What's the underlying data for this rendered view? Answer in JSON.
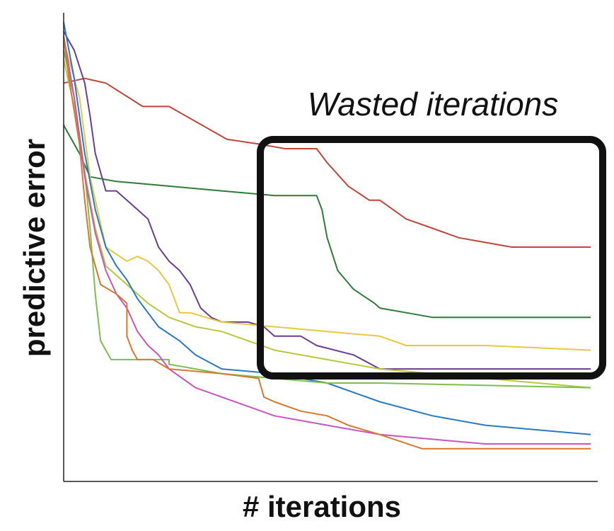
{
  "chart_data": {
    "type": "line",
    "xlabel": "# iterations",
    "ylabel": "predictive error",
    "xlim": [
      0,
      100
    ],
    "ylim": [
      0,
      100
    ],
    "grid": false,
    "annotation": {
      "text": "Wasted iterations"
    },
    "series": [
      {
        "color": "#c0463a",
        "points": [
          [
            0,
            85
          ],
          [
            4,
            86
          ],
          [
            8,
            85
          ],
          [
            15,
            80
          ],
          [
            20,
            80
          ],
          [
            31,
            73
          ],
          [
            37,
            72
          ],
          [
            42,
            71
          ],
          [
            48,
            71
          ],
          [
            50,
            68
          ],
          [
            54,
            63
          ],
          [
            58,
            60
          ],
          [
            60,
            60
          ],
          [
            65,
            56
          ],
          [
            70,
            54
          ],
          [
            75,
            52
          ],
          [
            80,
            51
          ],
          [
            85,
            50
          ],
          [
            90,
            50
          ],
          [
            100,
            50
          ]
        ]
      },
      {
        "color": "#2e7b38",
        "points": [
          [
            0,
            76
          ],
          [
            3,
            70
          ],
          [
            5,
            65
          ],
          [
            10,
            64
          ],
          [
            20,
            63
          ],
          [
            30,
            62
          ],
          [
            40,
            61
          ],
          [
            48,
            61
          ],
          [
            49,
            58
          ],
          [
            50,
            52
          ],
          [
            52,
            45
          ],
          [
            55,
            41
          ],
          [
            59,
            38
          ],
          [
            60,
            37
          ],
          [
            65,
            36
          ],
          [
            70,
            35
          ],
          [
            80,
            35
          ],
          [
            100,
            35
          ]
        ]
      },
      {
        "color": "#6a3d8f",
        "points": [
          [
            0,
            96
          ],
          [
            2,
            92
          ],
          [
            4,
            85
          ],
          [
            5,
            78
          ],
          [
            6,
            70
          ],
          [
            8,
            62
          ],
          [
            10,
            62
          ],
          [
            12,
            60
          ],
          [
            14,
            58
          ],
          [
            16,
            56
          ],
          [
            18,
            50
          ],
          [
            20,
            47
          ],
          [
            22,
            45
          ],
          [
            24,
            42
          ],
          [
            26,
            37
          ],
          [
            28,
            35
          ],
          [
            30,
            34
          ],
          [
            35,
            34
          ],
          [
            38,
            33
          ],
          [
            40,
            31
          ],
          [
            45,
            31
          ],
          [
            48,
            29
          ],
          [
            55,
            27
          ],
          [
            60,
            24
          ],
          [
            65,
            24
          ],
          [
            70,
            24
          ],
          [
            80,
            24
          ],
          [
            100,
            24
          ]
        ]
      },
      {
        "color": "#e8c840",
        "points": [
          [
            0,
            94
          ],
          [
            3,
            82
          ],
          [
            5,
            65
          ],
          [
            8,
            50
          ],
          [
            12,
            47
          ],
          [
            14,
            48
          ],
          [
            16,
            47
          ],
          [
            18,
            45
          ],
          [
            20,
            42
          ],
          [
            22,
            36
          ],
          [
            24,
            36
          ],
          [
            30,
            34
          ],
          [
            40,
            33
          ],
          [
            50,
            32
          ],
          [
            60,
            31
          ],
          [
            65,
            29
          ],
          [
            70,
            29
          ],
          [
            80,
            29
          ],
          [
            100,
            28
          ]
        ]
      },
      {
        "color": "#b7c83a",
        "points": [
          [
            0,
            90
          ],
          [
            2,
            80
          ],
          [
            4,
            66
          ],
          [
            6,
            54
          ],
          [
            8,
            46
          ],
          [
            12,
            42
          ],
          [
            16,
            38
          ],
          [
            20,
            35
          ],
          [
            25,
            33
          ],
          [
            30,
            32
          ],
          [
            40,
            28
          ],
          [
            50,
            26
          ],
          [
            60,
            24
          ],
          [
            70,
            23
          ],
          [
            80,
            22
          ],
          [
            100,
            20
          ]
        ]
      },
      {
        "color": "#2a78c4",
        "points": [
          [
            0,
            98
          ],
          [
            2,
            86
          ],
          [
            4,
            70
          ],
          [
            6,
            58
          ],
          [
            8,
            50
          ],
          [
            10,
            46
          ],
          [
            12,
            43
          ],
          [
            14,
            39
          ],
          [
            16,
            36
          ],
          [
            18,
            33
          ],
          [
            22,
            30
          ],
          [
            25,
            27
          ],
          [
            30,
            24
          ],
          [
            40,
            23
          ],
          [
            50,
            21
          ],
          [
            60,
            17
          ],
          [
            70,
            14
          ],
          [
            80,
            12
          ],
          [
            90,
            11
          ],
          [
            100,
            10
          ]
        ]
      },
      {
        "color": "#7cbf4e",
        "points": [
          [
            0,
            92
          ],
          [
            2,
            82
          ],
          [
            4,
            66
          ],
          [
            5,
            54
          ],
          [
            6,
            40
          ],
          [
            7,
            30
          ],
          [
            8,
            28
          ],
          [
            9,
            26
          ],
          [
            12,
            26
          ],
          [
            15,
            26
          ],
          [
            20,
            26
          ],
          [
            20,
            25
          ],
          [
            25,
            24
          ],
          [
            30,
            23
          ],
          [
            40,
            22
          ],
          [
            50,
            21
          ],
          [
            60,
            21
          ],
          [
            100,
            20
          ]
        ]
      },
      {
        "color": "#c655c0",
        "points": [
          [
            0,
            95
          ],
          [
            2,
            82
          ],
          [
            4,
            65
          ],
          [
            6,
            53
          ],
          [
            8,
            45
          ],
          [
            10,
            40
          ],
          [
            12,
            37
          ],
          [
            14,
            32
          ],
          [
            16,
            29
          ],
          [
            18,
            27
          ],
          [
            20,
            24
          ],
          [
            25,
            20
          ],
          [
            30,
            18
          ],
          [
            35,
            16
          ],
          [
            40,
            14
          ],
          [
            50,
            12
          ],
          [
            60,
            10
          ],
          [
            70,
            9
          ],
          [
            80,
            8
          ],
          [
            100,
            8
          ]
        ]
      },
      {
        "color": "#d9772c",
        "points": [
          [
            0,
            95
          ],
          [
            1,
            86
          ],
          [
            3,
            72
          ],
          [
            4,
            60
          ],
          [
            5,
            50
          ],
          [
            7,
            42
          ],
          [
            10,
            40
          ],
          [
            12,
            38
          ],
          [
            12,
            31
          ],
          [
            13,
            28
          ],
          [
            14,
            26
          ],
          [
            17,
            26
          ],
          [
            20,
            24
          ],
          [
            30,
            23
          ],
          [
            37,
            22
          ],
          [
            38,
            18
          ],
          [
            40,
            17
          ],
          [
            45,
            15
          ],
          [
            50,
            14
          ],
          [
            54,
            12
          ],
          [
            57,
            11
          ],
          [
            60,
            10
          ],
          [
            68,
            7
          ],
          [
            100,
            7
          ]
        ]
      }
    ]
  }
}
